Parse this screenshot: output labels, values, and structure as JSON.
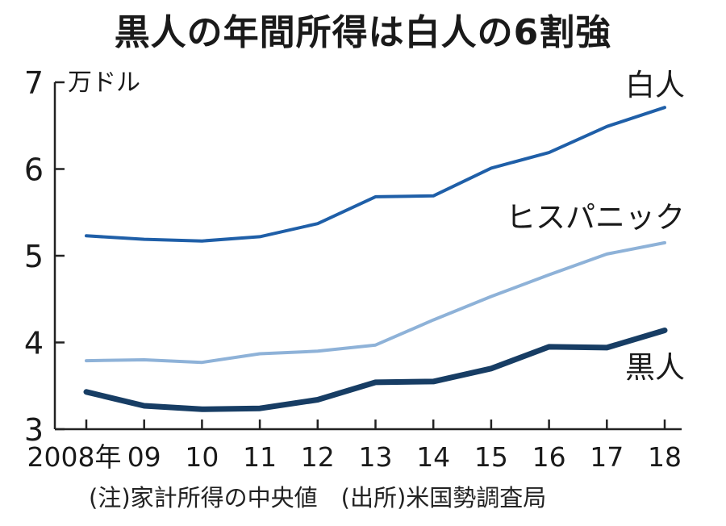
{
  "title": "黒人の年間所得は白人の6割強",
  "note": "(注)家計所得の中央値　(出所)米国勢調査局",
  "chart_data": {
    "type": "line",
    "title": "黒人の年間所得は白人の6割強",
    "ylabel": "万ドル",
    "xlabel": "",
    "categories": [
      "2008年",
      "09",
      "10",
      "11",
      "12",
      "13",
      "14",
      "15",
      "16",
      "17",
      "18"
    ],
    "ylim": [
      3,
      7
    ],
    "yticks": [
      3,
      4,
      5,
      6,
      7
    ],
    "grid": false,
    "series": [
      {
        "name": "白人",
        "color": "#1f5fa8",
        "values": [
          5.23,
          5.19,
          5.17,
          5.22,
          5.37,
          5.68,
          5.69,
          6.01,
          6.19,
          6.49,
          6.71
        ]
      },
      {
        "name": "ヒスパニック",
        "color": "#8eb2d8",
        "values": [
          3.79,
          3.8,
          3.77,
          3.87,
          3.9,
          3.97,
          4.26,
          4.53,
          4.78,
          5.02,
          5.15
        ]
      },
      {
        "name": "黒人",
        "color": "#173d64",
        "values": [
          3.43,
          3.27,
          3.23,
          3.24,
          3.34,
          3.54,
          3.55,
          3.7,
          3.95,
          3.94,
          4.14
        ]
      }
    ]
  }
}
